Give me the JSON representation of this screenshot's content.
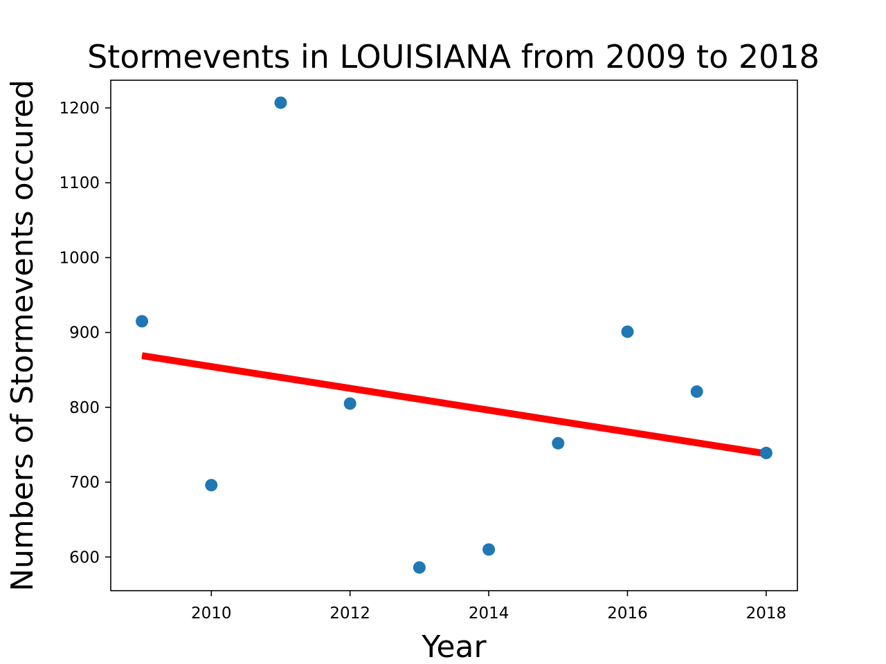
{
  "chart_data": {
    "type": "scatter",
    "title": "Stormevents in LOUISIANA from 2009 to 2018",
    "xlabel": "Year",
    "ylabel": "Numbers of Stormevents occured",
    "x": [
      2009,
      2010,
      2011,
      2012,
      2013,
      2014,
      2015,
      2016,
      2017,
      2018
    ],
    "y": [
      915,
      696,
      1207,
      805,
      586,
      610,
      752,
      901,
      821,
      739
    ],
    "trendline": {
      "x": [
        2009,
        2018
      ],
      "y": [
        869,
        738
      ]
    },
    "xlim": [
      2008.55,
      2018.45
    ],
    "ylim": [
      555,
      1237
    ],
    "xticks": [
      2010,
      2012,
      2014,
      2016,
      2018
    ],
    "yticks": [
      600,
      700,
      800,
      900,
      1000,
      1100,
      1200
    ],
    "grid": false,
    "colors": {
      "points": "#1f77b4",
      "trendline": "#ff0000"
    }
  }
}
